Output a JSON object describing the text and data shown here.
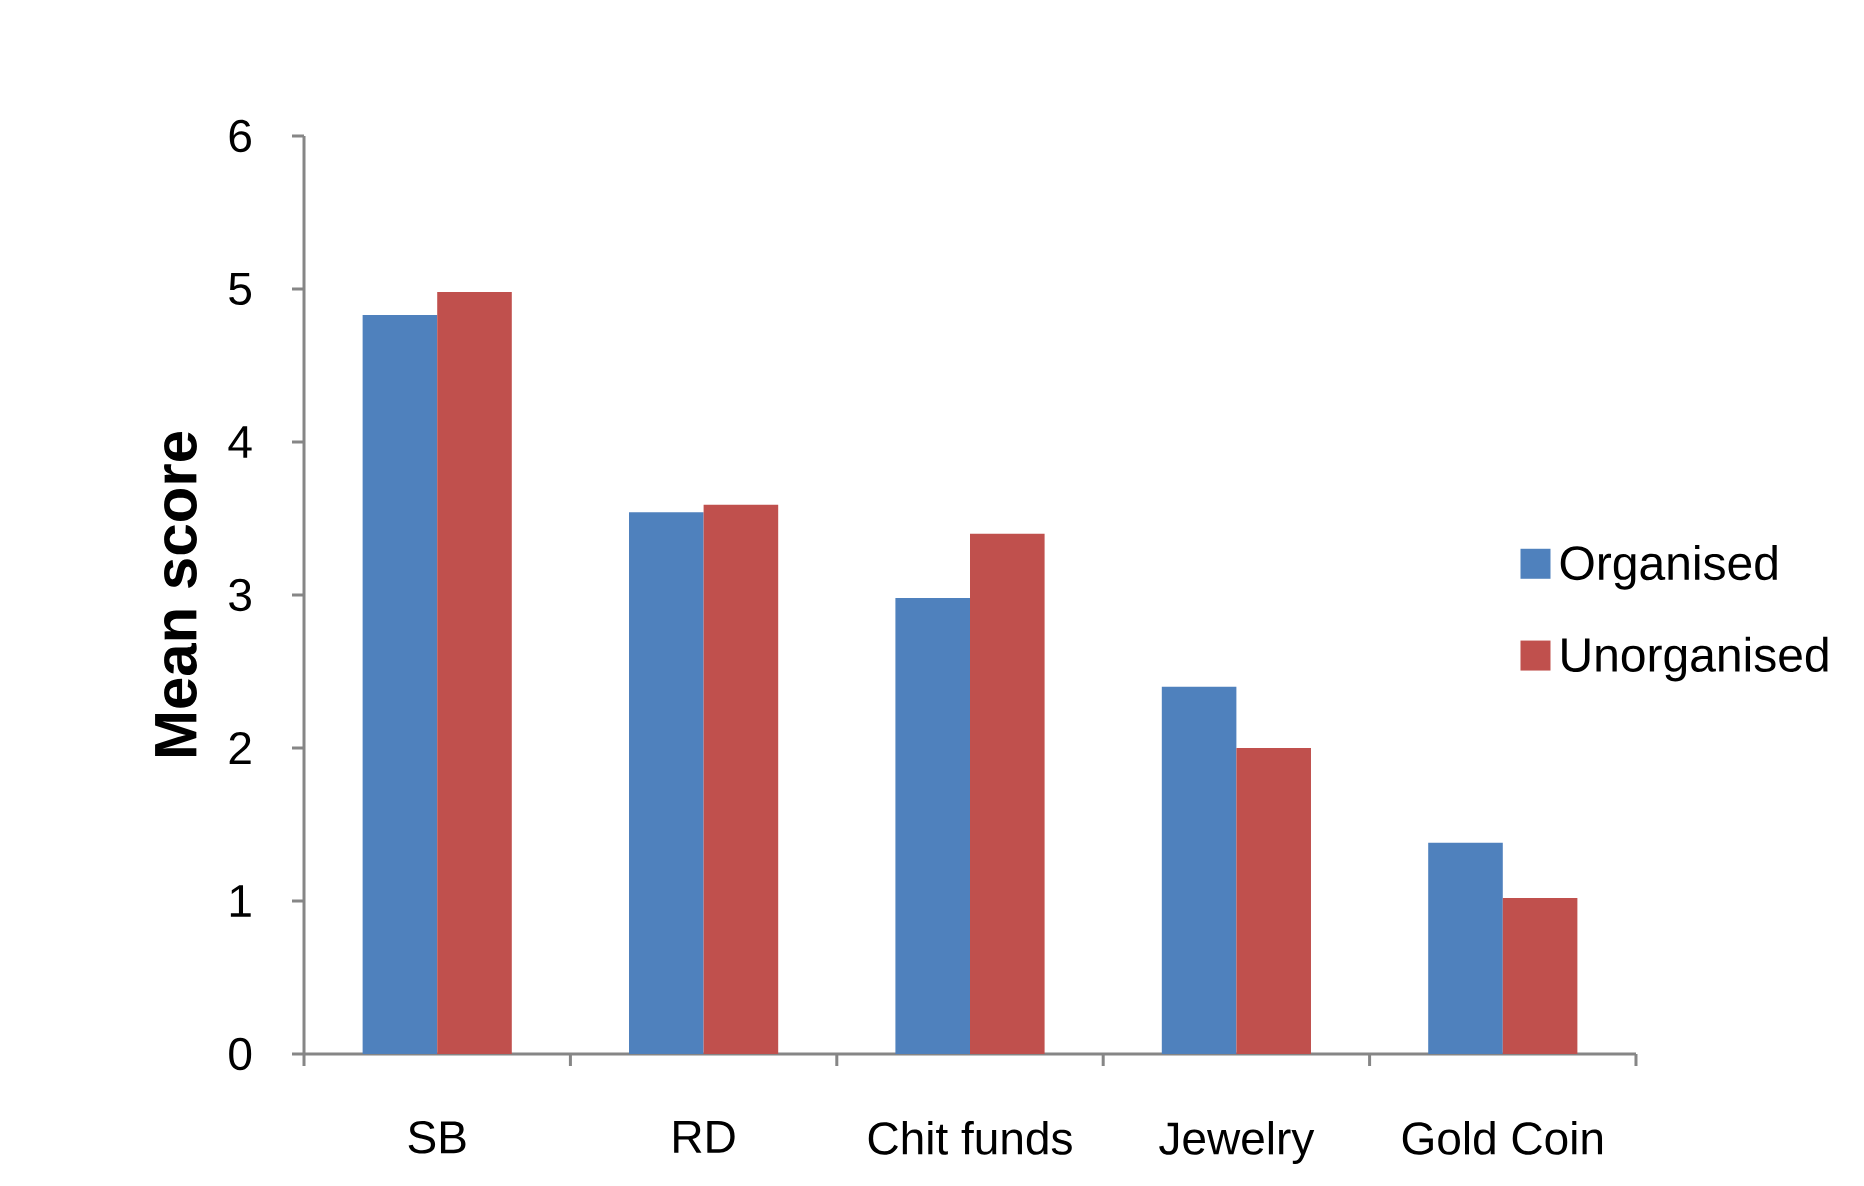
{
  "chart_data": {
    "type": "bar",
    "ylabel": "Mean score",
    "categories": [
      "SB",
      "RD",
      "Chit funds",
      "Jewelry",
      "Gold Coin"
    ],
    "series": [
      {
        "name": "Organised",
        "color": "#4f81bd",
        "values": [
          4.83,
          3.54,
          2.98,
          2.4,
          1.38
        ]
      },
      {
        "name": "Unorganised",
        "color": "#c0504d",
        "values": [
          4.98,
          3.59,
          3.4,
          2.0,
          1.02
        ]
      }
    ],
    "ylim": [
      0,
      6
    ],
    "yticks": [
      0,
      1,
      2,
      3,
      4,
      5,
      6
    ],
    "legend": "right"
  }
}
